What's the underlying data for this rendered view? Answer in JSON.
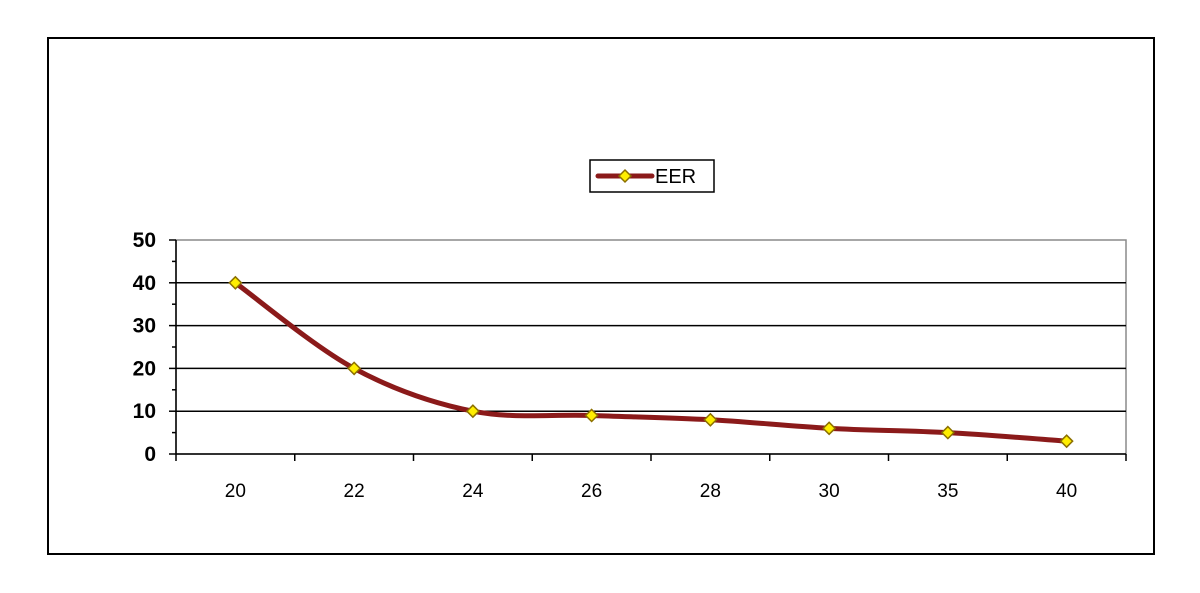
{
  "chart_data": {
    "type": "line",
    "categories": [
      "20",
      "22",
      "24",
      "26",
      "28",
      "30",
      "35",
      "40"
    ],
    "series": [
      {
        "name": "EER",
        "values": [
          40,
          20,
          10,
          9,
          8,
          6,
          5,
          3
        ],
        "line_color": "#8b1a1a",
        "marker_fill": "#ffee00",
        "marker_stroke": "#8b6f00"
      }
    ],
    "ylim": [
      0,
      50
    ],
    "yticks": [
      0,
      10,
      20,
      30,
      40,
      50
    ],
    "y_grid": true,
    "legend_position": "top-center",
    "title": "",
    "xlabel": "",
    "ylabel": ""
  }
}
